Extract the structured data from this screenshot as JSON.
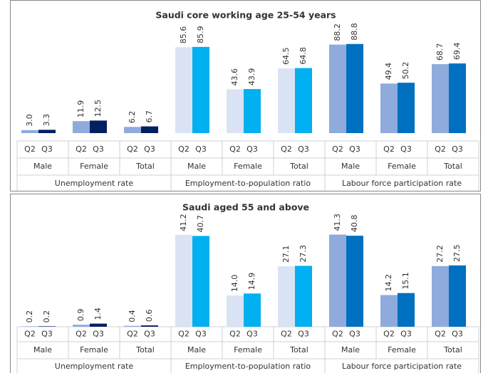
{
  "chart_data": [
    {
      "type": "bar",
      "title": "Saudi core working age 25-54 years",
      "ylim": [
        0,
        100
      ],
      "groups": [
        {
          "name": "Unemployment rate",
          "categories": [
            "Male",
            "Female",
            "Total"
          ],
          "series": [
            {
              "name": "Q2",
              "color": "#8faadc",
              "values": [
                3.0,
                11.9,
                6.2
              ],
              "value_labels": [
                "3.0",
                "11.9",
                "6.2"
              ]
            },
            {
              "name": "Q3",
              "color": "#002060",
              "values": [
                3.3,
                12.5,
                6.7
              ],
              "value_labels": [
                "3.3",
                "12.5",
                "6.7"
              ]
            }
          ]
        },
        {
          "name": "Employment-to-population ratio",
          "categories": [
            "Male",
            "Female",
            "Total"
          ],
          "series": [
            {
              "name": "Q2",
              "color": "#dae3f3",
              "values": [
                85.6,
                43.6,
                64.5
              ],
              "value_labels": [
                "85.6",
                "43.6",
                "64.5"
              ]
            },
            {
              "name": "Q3",
              "color": "#00b0f0",
              "values": [
                85.9,
                43.9,
                64.8
              ],
              "value_labels": [
                "85.9",
                "43.9",
                "64.8"
              ]
            }
          ]
        },
        {
          "name": "Labour force participation rate",
          "categories": [
            "Male",
            "Female",
            "Total"
          ],
          "series": [
            {
              "name": "Q2",
              "color": "#8faadc",
              "values": [
                88.2,
                49.4,
                68.7
              ],
              "value_labels": [
                "88.2",
                "49.4",
                "68.7"
              ]
            },
            {
              "name": "Q3",
              "color": "#0070c0",
              "values": [
                88.8,
                50.2,
                69.4
              ],
              "value_labels": [
                "88.8",
                "50.2",
                "69.4"
              ]
            }
          ]
        }
      ]
    },
    {
      "type": "bar",
      "title": "Saudi aged 55 and above",
      "ylim": [
        0,
        45
      ],
      "groups": [
        {
          "name": "Unemployment rate",
          "categories": [
            "Male",
            "Female",
            "Total"
          ],
          "series": [
            {
              "name": "Q2",
              "color": "#8faadc",
              "values": [
                0.2,
                0.9,
                0.4
              ],
              "value_labels": [
                "0.2",
                "0.9",
                "0.4"
              ]
            },
            {
              "name": "Q3",
              "color": "#002060",
              "values": [
                0.2,
                1.4,
                0.6
              ],
              "value_labels": [
                "0.2",
                "1.4",
                "0.6"
              ]
            }
          ]
        },
        {
          "name": "Employment-to-population ratio",
          "categories": [
            "Male",
            "Female",
            "Total"
          ],
          "series": [
            {
              "name": "Q2",
              "color": "#dae3f3",
              "values": [
                41.2,
                14.0,
                27.1
              ],
              "value_labels": [
                "41.2",
                "14.0",
                "27.1"
              ]
            },
            {
              "name": "Q3",
              "color": "#00b0f0",
              "values": [
                40.7,
                14.9,
                27.3
              ],
              "value_labels": [
                "40.7",
                "14.9",
                "27.3"
              ]
            }
          ]
        },
        {
          "name": "Labour force participation rate",
          "categories": [
            "Male",
            "Female",
            "Total"
          ],
          "series": [
            {
              "name": "Q2",
              "color": "#8faadc",
              "values": [
                41.3,
                14.2,
                27.2
              ],
              "value_labels": [
                "41.3",
                "14.2",
                "27.2"
              ]
            },
            {
              "name": "Q3",
              "color": "#0070c0",
              "values": [
                40.8,
                15.1,
                27.5
              ],
              "value_labels": [
                "40.8",
                "15.1",
                "27.5"
              ]
            }
          ]
        }
      ]
    }
  ]
}
